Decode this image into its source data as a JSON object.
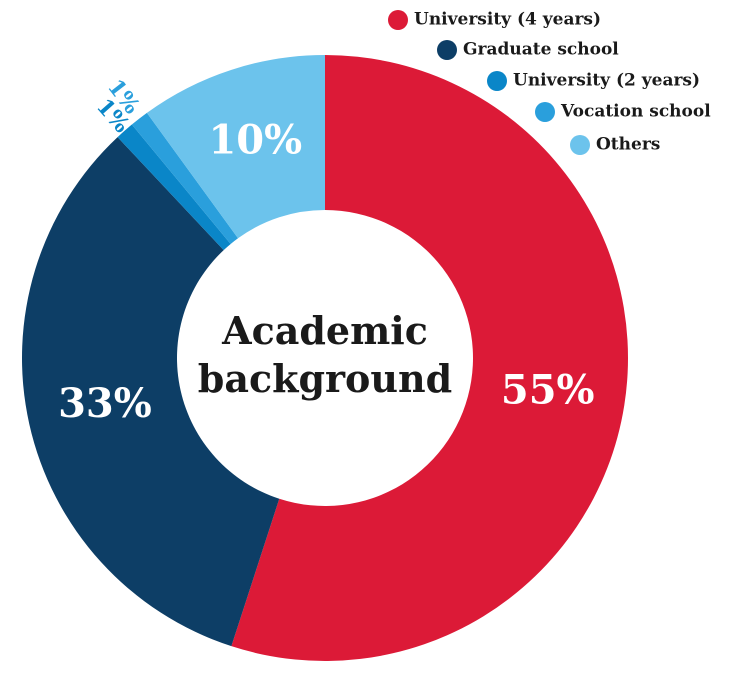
{
  "chart_data": {
    "type": "donut",
    "title": "Academic background",
    "categories": [
      "University (4 years)",
      "Graduate school",
      "University (2 years)",
      "Vocation school",
      "Others"
    ],
    "values": [
      55,
      33,
      1,
      1,
      10
    ],
    "value_labels": [
      "55%",
      "33%",
      "1%",
      "1%",
      "10%"
    ],
    "colors": [
      "#dc1a37",
      "#0d3e66",
      "#0a86c8",
      "#2a9fdc",
      "#6cc3ec"
    ]
  }
}
